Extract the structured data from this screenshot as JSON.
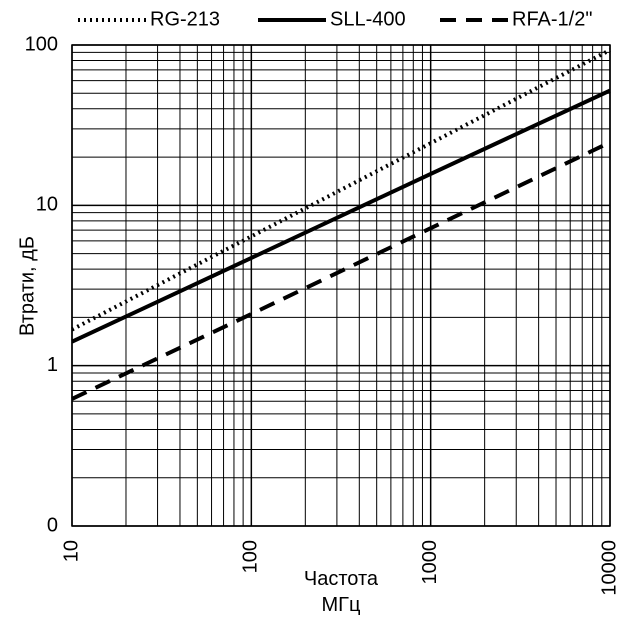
{
  "chart_data": {
    "type": "line",
    "xlabel": "Частота МГц",
    "ylabel": "Втрати, дБ",
    "x": [
      10,
      100,
      1000,
      10000
    ],
    "series": [
      {
        "name": "RG-213",
        "color": "#000000",
        "dash": "dotted",
        "values": [
          1.68,
          6.4,
          24.4,
          93
        ]
      },
      {
        "name": "SLL-400",
        "color": "#000000",
        "dash": "solid",
        "values": [
          1.41,
          4.7,
          15.7,
          52
        ]
      },
      {
        "name": "RFA-1/2\"",
        "color": "#000000",
        "dash": "dashed",
        "values": [
          0.62,
          2.1,
          7.2,
          24.7
        ]
      }
    ],
    "xlim": [
      10,
      10000
    ],
    "ylim": [
      0.1,
      100
    ],
    "xticks": [
      10,
      100,
      1000,
      10000
    ],
    "yticks": [
      {
        "value": 0.1,
        "label": "0"
      },
      1,
      10,
      100
    ],
    "xlog": true,
    "ylog": true,
    "grid": true,
    "minor_grid": true,
    "legend": "top"
  }
}
